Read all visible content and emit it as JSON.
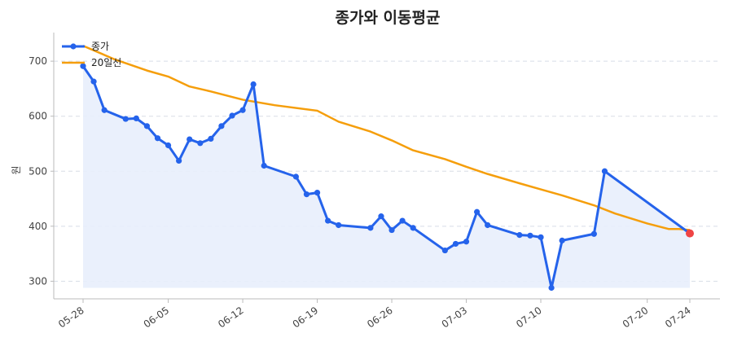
{
  "chart_data": {
    "type": "line",
    "title": "종가와 이동평균",
    "xlabel": "",
    "ylabel": "원",
    "ylim": [
      268,
      752
    ],
    "yticks": [
      300,
      400,
      500,
      600,
      700
    ],
    "grid": "horizontal dashed",
    "legend_position": "top-left",
    "dates": [
      "05-28",
      "05-29",
      "05-30",
      "05-31",
      "06-01",
      "06-02",
      "06-03",
      "06-04",
      "06-05",
      "06-06",
      "06-07",
      "06-08",
      "06-09",
      "06-10",
      "06-11",
      "06-12",
      "06-13",
      "06-14",
      "06-15",
      "06-16",
      "06-17",
      "06-18",
      "06-19",
      "06-20",
      "06-21",
      "06-22",
      "06-23",
      "06-24",
      "06-25",
      "06-26",
      "06-27",
      "06-28",
      "06-29",
      "06-30",
      "07-01",
      "07-02",
      "07-03",
      "07-04",
      "07-05",
      "07-06",
      "07-07",
      "07-08",
      "07-09",
      "07-10",
      "07-11",
      "07-12",
      "07-13",
      "07-14",
      "07-15",
      "07-16",
      "07-17",
      "07-18",
      "07-19",
      "07-20",
      "07-21",
      "07-22",
      "07-23",
      "07-24"
    ],
    "x_tick_labels": [
      "05-28",
      "06-05",
      "06-12",
      "06-19",
      "06-26",
      "07-03",
      "07-10",
      "07-20",
      "07-24"
    ],
    "series": [
      {
        "name": "종가",
        "color": "#2563eb",
        "points": [
          [
            "05-28",
            691
          ],
          [
            "05-29",
            663
          ],
          [
            "05-30",
            611
          ],
          [
            "06-01",
            595
          ],
          [
            "06-02",
            596
          ],
          [
            "06-03",
            582
          ],
          [
            "06-04",
            560
          ],
          [
            "06-05",
            547
          ],
          [
            "06-06",
            519
          ],
          [
            "06-07",
            558
          ],
          [
            "06-08",
            551
          ],
          [
            "06-09",
            559
          ],
          [
            "06-10",
            582
          ],
          [
            "06-11",
            601
          ],
          [
            "06-12",
            611
          ],
          [
            "06-13",
            658
          ],
          [
            "06-14",
            510
          ],
          [
            "06-17",
            490
          ],
          [
            "06-18",
            458
          ],
          [
            "06-19",
            461
          ],
          [
            "06-20",
            410
          ],
          [
            "06-21",
            402
          ],
          [
            "06-24",
            397
          ],
          [
            "06-25",
            418
          ],
          [
            "06-26",
            393
          ],
          [
            "06-27",
            410
          ],
          [
            "06-28",
            397
          ],
          [
            "07-01",
            356
          ],
          [
            "07-02",
            368
          ],
          [
            "07-03",
            372
          ],
          [
            "07-04",
            426
          ],
          [
            "07-05",
            402
          ],
          [
            "07-08",
            384
          ],
          [
            "07-09",
            383
          ],
          [
            "07-10",
            380
          ],
          [
            "07-11",
            288
          ],
          [
            "07-12",
            374
          ],
          [
            "07-15",
            386
          ],
          [
            "07-16",
            500
          ],
          [
            "07-24",
            387
          ]
        ]
      },
      {
        "name": "20일선",
        "color": "#f59e0b",
        "points": [
          [
            "05-28",
            728
          ],
          [
            "05-31",
            703
          ],
          [
            "06-03",
            683
          ],
          [
            "06-05",
            672
          ],
          [
            "06-07",
            654
          ],
          [
            "06-09",
            645
          ],
          [
            "06-12",
            630
          ],
          [
            "06-15",
            620
          ],
          [
            "06-19",
            610
          ],
          [
            "06-21",
            590
          ],
          [
            "06-24",
            572
          ],
          [
            "06-26",
            556
          ],
          [
            "06-28",
            538
          ],
          [
            "07-01",
            522
          ],
          [
            "07-03",
            508
          ],
          [
            "07-05",
            495
          ],
          [
            "07-08",
            478
          ],
          [
            "07-10",
            467
          ],
          [
            "07-12",
            456
          ],
          [
            "07-15",
            438
          ],
          [
            "07-17",
            423
          ],
          [
            "07-20",
            405
          ],
          [
            "07-22",
            395
          ],
          [
            "07-23",
            395
          ],
          [
            "07-24",
            393
          ]
        ]
      }
    ],
    "highlight": {
      "x": "07-24",
      "y": 387,
      "color": "#ef4444"
    },
    "fill_color": "#e8eefc"
  }
}
